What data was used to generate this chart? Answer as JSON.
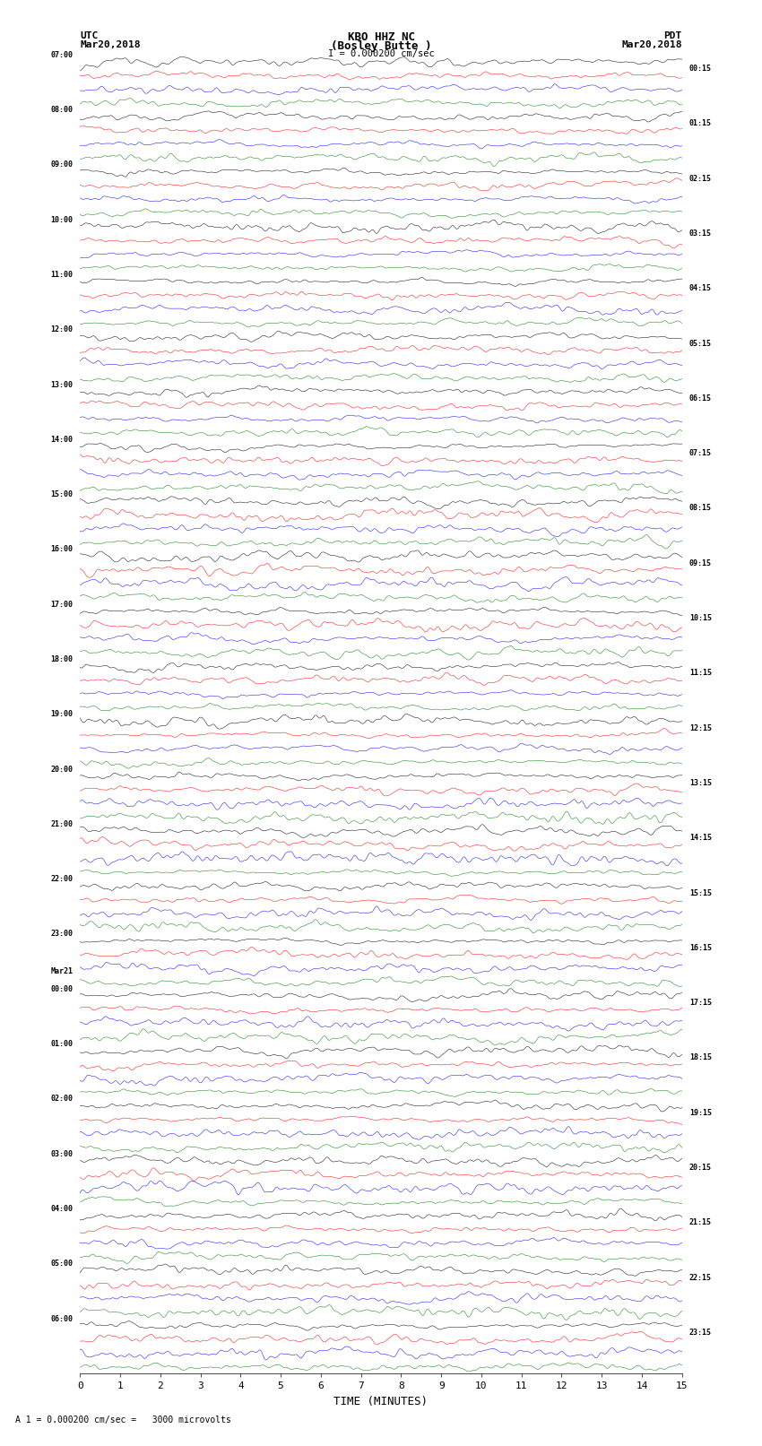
{
  "title_line1": "KBO HHZ NC",
  "title_line2": "(Bosley Butte )",
  "scale_label": "I = 0.000200 cm/sec",
  "scale_note": "A 1 = 0.000200 cm/sec =   3000 microvolts",
  "left_header_line1": "UTC",
  "left_header_line2": "Mar20,2018",
  "right_header_line1": "PDT",
  "right_header_line2": "Mar20,2018",
  "xlabel": "TIME (MINUTES)",
  "xlim": [
    0,
    15
  ],
  "xticks": [
    0,
    1,
    2,
    3,
    4,
    5,
    6,
    7,
    8,
    9,
    10,
    11,
    12,
    13,
    14,
    15
  ],
  "colors": [
    "black",
    "red",
    "blue",
    "green"
  ],
  "bg_color": "white",
  "figsize": [
    8.5,
    16.13
  ],
  "dpi": 100,
  "num_rows": 96,
  "left_times": [
    "07:00",
    "08:00",
    "09:00",
    "10:00",
    "11:00",
    "12:00",
    "13:00",
    "14:00",
    "15:00",
    "16:00",
    "17:00",
    "18:00",
    "19:00",
    "20:00",
    "21:00",
    "22:00",
    "23:00",
    "Mar21",
    "00:00",
    "01:00",
    "02:00",
    "03:00",
    "04:00",
    "05:00",
    "06:00"
  ],
  "left_time_row_idx": [
    0,
    4,
    8,
    12,
    16,
    20,
    24,
    28,
    32,
    36,
    40,
    44,
    48,
    52,
    56,
    60,
    64,
    67,
    68,
    72,
    76,
    80,
    84,
    88,
    92
  ],
  "right_times": [
    "00:15",
    "01:15",
    "02:15",
    "03:15",
    "04:15",
    "05:15",
    "06:15",
    "07:15",
    "08:15",
    "09:15",
    "10:15",
    "11:15",
    "12:15",
    "13:15",
    "14:15",
    "15:15",
    "16:15",
    "17:15",
    "18:15",
    "19:15",
    "20:15",
    "21:15",
    "22:15",
    "23:15"
  ],
  "right_time_row_idx": [
    1,
    5,
    9,
    13,
    17,
    21,
    25,
    29,
    33,
    37,
    41,
    45,
    49,
    53,
    57,
    61,
    65,
    69,
    73,
    77,
    81,
    85,
    89,
    93
  ]
}
